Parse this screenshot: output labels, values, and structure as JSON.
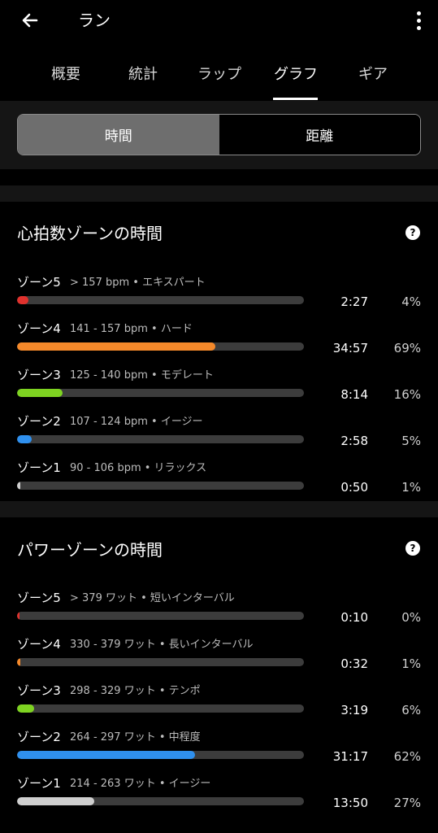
{
  "header": {
    "title": "ラン"
  },
  "tabs": [
    {
      "label": "概要"
    },
    {
      "label": "統計"
    },
    {
      "label": "ラップ"
    },
    {
      "label": "グラフ",
      "active": true
    },
    {
      "label": "ギア"
    }
  ],
  "segment": {
    "options": [
      "時間",
      "距離"
    ],
    "selected": "時間"
  },
  "hr_section": {
    "title": "心拍数ゾーンの時間",
    "zones": [
      {
        "name": "ゾーン5",
        "range": "> 157 bpm • エキスパート",
        "time": "2:27",
        "percent": "4%",
        "fraction": 0.04,
        "color": "#e0312d"
      },
      {
        "name": "ゾーン4",
        "range": "141 - 157 bpm • ハード",
        "time": "34:57",
        "percent": "69%",
        "fraction": 0.69,
        "color": "#f5892a"
      },
      {
        "name": "ゾーン3",
        "range": "125 - 140 bpm • モデレート",
        "time": "8:14",
        "percent": "16%",
        "fraction": 0.16,
        "color": "#7ed321"
      },
      {
        "name": "ゾーン2",
        "range": "107 - 124 bpm • イージー",
        "time": "2:58",
        "percent": "5%",
        "fraction": 0.05,
        "color": "#2f90ee"
      },
      {
        "name": "ゾーン1",
        "range": "90 - 106 bpm • リラックス",
        "time": "0:50",
        "percent": "1%",
        "fraction": 0.01,
        "color": "#cfcfcf"
      }
    ]
  },
  "power_section": {
    "title": "パワーゾーンの時間",
    "zones": [
      {
        "name": "ゾーン5",
        "range": "> 379 ワット • 短いインターバル",
        "time": "0:10",
        "percent": "0%",
        "fraction": 0.0,
        "color": "#e0312d"
      },
      {
        "name": "ゾーン4",
        "range": "330 - 379 ワット • 長いインターバル",
        "time": "0:32",
        "percent": "1%",
        "fraction": 0.01,
        "color": "#f5892a"
      },
      {
        "name": "ゾーン3",
        "range": "298 - 329 ワット • テンポ",
        "time": "3:19",
        "percent": "6%",
        "fraction": 0.06,
        "color": "#7ed321"
      },
      {
        "name": "ゾーン2",
        "range": "264 - 297 ワット • 中程度",
        "time": "31:17",
        "percent": "62%",
        "fraction": 0.62,
        "color": "#2f90ee"
      },
      {
        "name": "ゾーン1",
        "range": "214 - 263 ワット • イージー",
        "time": "13:50",
        "percent": "27%",
        "fraction": 0.27,
        "color": "#cfcfcf"
      }
    ]
  },
  "icons": {
    "back": "arrow-left-icon",
    "more": "more-vertical-icon",
    "help": "help-icon"
  }
}
